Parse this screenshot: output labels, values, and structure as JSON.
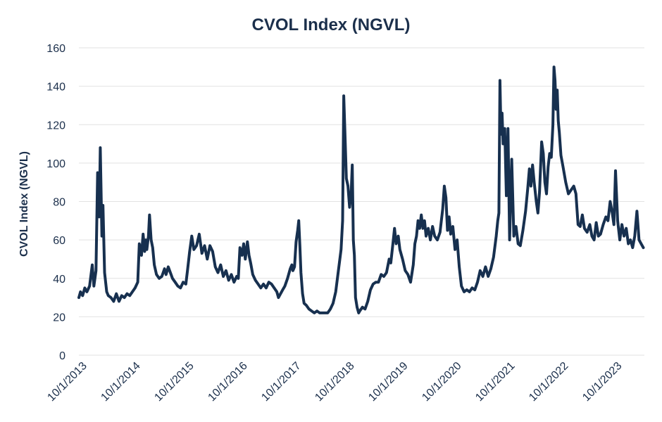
{
  "chart_data": {
    "type": "line",
    "title": "CVOL Index (NGVL)",
    "xlabel": "",
    "ylabel": "CVOL Index (NGVL)",
    "ylim": [
      0,
      160
    ],
    "yticks": [
      0,
      20,
      40,
      60,
      80,
      100,
      120,
      140,
      160
    ],
    "x_range": [
      2013.75,
      2024.32
    ],
    "x_tick_labels": [
      "10/1/2013",
      "10/1/2014",
      "10/1/2015",
      "10/1/2016",
      "10/1/2017",
      "10/1/2018",
      "10/1/2019",
      "10/1/2020",
      "10/1/2021",
      "10/1/2022",
      "10/1/2023"
    ],
    "x_tick_values": [
      2013.75,
      2014.75,
      2015.75,
      2016.75,
      2017.75,
      2018.75,
      2019.75,
      2020.75,
      2021.75,
      2022.75,
      2023.75
    ],
    "grid": true,
    "legend": "none",
    "line_color": "#17304f",
    "series": [
      {
        "name": "CVOL Index (NGVL)",
        "points": [
          [
            2013.75,
            30
          ],
          [
            2013.78,
            33
          ],
          [
            2013.82,
            31
          ],
          [
            2013.86,
            35
          ],
          [
            2013.9,
            33
          ],
          [
            2013.95,
            36
          ],
          [
            2014.0,
            47
          ],
          [
            2014.03,
            36
          ],
          [
            2014.07,
            44
          ],
          [
            2014.1,
            95
          ],
          [
            2014.13,
            72
          ],
          [
            2014.15,
            108
          ],
          [
            2014.18,
            62
          ],
          [
            2014.2,
            78
          ],
          [
            2014.23,
            43
          ],
          [
            2014.27,
            33
          ],
          [
            2014.3,
            31
          ],
          [
            2014.35,
            30
          ],
          [
            2014.4,
            28
          ],
          [
            2014.45,
            32
          ],
          [
            2014.5,
            28
          ],
          [
            2014.55,
            31
          ],
          [
            2014.6,
            30
          ],
          [
            2014.65,
            32
          ],
          [
            2014.7,
            31
          ],
          [
            2014.75,
            33
          ],
          [
            2014.8,
            35
          ],
          [
            2014.85,
            38
          ],
          [
            2014.88,
            58
          ],
          [
            2014.92,
            52
          ],
          [
            2014.95,
            63
          ],
          [
            2014.98,
            54
          ],
          [
            2015.0,
            60
          ],
          [
            2015.02,
            55
          ],
          [
            2015.05,
            62
          ],
          [
            2015.07,
            73
          ],
          [
            2015.1,
            60
          ],
          [
            2015.13,
            56
          ],
          [
            2015.16,
            47
          ],
          [
            2015.2,
            42
          ],
          [
            2015.25,
            40
          ],
          [
            2015.3,
            41
          ],
          [
            2015.35,
            45
          ],
          [
            2015.38,
            42
          ],
          [
            2015.42,
            46
          ],
          [
            2015.46,
            43
          ],
          [
            2015.5,
            40
          ],
          [
            2015.55,
            38
          ],
          [
            2015.6,
            36
          ],
          [
            2015.65,
            35
          ],
          [
            2015.7,
            38
          ],
          [
            2015.75,
            37
          ],
          [
            2015.78,
            44
          ],
          [
            2015.82,
            54
          ],
          [
            2015.86,
            62
          ],
          [
            2015.9,
            55
          ],
          [
            2015.95,
            57
          ],
          [
            2016.0,
            63
          ],
          [
            2016.05,
            53
          ],
          [
            2016.1,
            57
          ],
          [
            2016.15,
            50
          ],
          [
            2016.2,
            57
          ],
          [
            2016.25,
            54
          ],
          [
            2016.3,
            46
          ],
          [
            2016.35,
            43
          ],
          [
            2016.4,
            47
          ],
          [
            2016.45,
            41
          ],
          [
            2016.5,
            44
          ],
          [
            2016.55,
            39
          ],
          [
            2016.6,
            42
          ],
          [
            2016.65,
            38
          ],
          [
            2016.7,
            41
          ],
          [
            2016.73,
            40
          ],
          [
            2016.76,
            56
          ],
          [
            2016.8,
            52
          ],
          [
            2016.83,
            58
          ],
          [
            2016.86,
            50
          ],
          [
            2016.9,
            59
          ],
          [
            2016.93,
            52
          ],
          [
            2016.96,
            48
          ],
          [
            2017.0,
            42
          ],
          [
            2017.05,
            39
          ],
          [
            2017.1,
            37
          ],
          [
            2017.15,
            35
          ],
          [
            2017.2,
            37
          ],
          [
            2017.25,
            35
          ],
          [
            2017.3,
            38
          ],
          [
            2017.35,
            37
          ],
          [
            2017.4,
            35
          ],
          [
            2017.45,
            33
          ],
          [
            2017.48,
            30
          ],
          [
            2017.52,
            32
          ],
          [
            2017.56,
            34
          ],
          [
            2017.6,
            36
          ],
          [
            2017.65,
            40
          ],
          [
            2017.7,
            45
          ],
          [
            2017.73,
            47
          ],
          [
            2017.75,
            44
          ],
          [
            2017.78,
            46
          ],
          [
            2017.81,
            59
          ],
          [
            2017.84,
            65
          ],
          [
            2017.86,
            70
          ],
          [
            2017.88,
            57
          ],
          [
            2017.9,
            43
          ],
          [
            2017.93,
            32
          ],
          [
            2017.96,
            27
          ],
          [
            2018.0,
            26
          ],
          [
            2018.05,
            24
          ],
          [
            2018.1,
            23
          ],
          [
            2018.15,
            22
          ],
          [
            2018.2,
            23
          ],
          [
            2018.25,
            22
          ],
          [
            2018.3,
            22
          ],
          [
            2018.35,
            22
          ],
          [
            2018.4,
            22
          ],
          [
            2018.45,
            24
          ],
          [
            2018.5,
            27
          ],
          [
            2018.55,
            33
          ],
          [
            2018.6,
            44
          ],
          [
            2018.65,
            55
          ],
          [
            2018.68,
            70
          ],
          [
            2018.7,
            135
          ],
          [
            2018.72,
            118
          ],
          [
            2018.75,
            92
          ],
          [
            2018.78,
            88
          ],
          [
            2018.81,
            77
          ],
          [
            2018.84,
            85
          ],
          [
            2018.86,
            99
          ],
          [
            2018.88,
            60
          ],
          [
            2018.9,
            52
          ],
          [
            2018.92,
            30
          ],
          [
            2018.95,
            25
          ],
          [
            2018.98,
            22
          ],
          [
            2019.0,
            23
          ],
          [
            2019.05,
            25
          ],
          [
            2019.1,
            24
          ],
          [
            2019.15,
            28
          ],
          [
            2019.2,
            34
          ],
          [
            2019.25,
            37
          ],
          [
            2019.3,
            38
          ],
          [
            2019.35,
            38
          ],
          [
            2019.4,
            42
          ],
          [
            2019.45,
            41
          ],
          [
            2019.5,
            43
          ],
          [
            2019.55,
            50
          ],
          [
            2019.58,
            48
          ],
          [
            2019.62,
            58
          ],
          [
            2019.65,
            66
          ],
          [
            2019.68,
            58
          ],
          [
            2019.72,
            62
          ],
          [
            2019.75,
            55
          ],
          [
            2019.8,
            50
          ],
          [
            2019.85,
            44
          ],
          [
            2019.9,
            42
          ],
          [
            2019.95,
            38
          ],
          [
            2020.0,
            47
          ],
          [
            2020.03,
            58
          ],
          [
            2020.06,
            62
          ],
          [
            2020.09,
            70
          ],
          [
            2020.12,
            66
          ],
          [
            2020.15,
            73
          ],
          [
            2020.18,
            66
          ],
          [
            2020.21,
            70
          ],
          [
            2020.24,
            62
          ],
          [
            2020.28,
            66
          ],
          [
            2020.32,
            60
          ],
          [
            2020.36,
            67
          ],
          [
            2020.4,
            62
          ],
          [
            2020.45,
            60
          ],
          [
            2020.5,
            64
          ],
          [
            2020.55,
            76
          ],
          [
            2020.58,
            88
          ],
          [
            2020.61,
            82
          ],
          [
            2020.64,
            65
          ],
          [
            2020.67,
            72
          ],
          [
            2020.7,
            63
          ],
          [
            2020.74,
            67
          ],
          [
            2020.78,
            55
          ],
          [
            2020.82,
            60
          ],
          [
            2020.86,
            46
          ],
          [
            2020.9,
            36
          ],
          [
            2020.95,
            33
          ],
          [
            2021.0,
            34
          ],
          [
            2021.05,
            33
          ],
          [
            2021.1,
            35
          ],
          [
            2021.15,
            34
          ],
          [
            2021.2,
            38
          ],
          [
            2021.25,
            44
          ],
          [
            2021.3,
            41
          ],
          [
            2021.35,
            46
          ],
          [
            2021.4,
            41
          ],
          [
            2021.45,
            45
          ],
          [
            2021.5,
            51
          ],
          [
            2021.55,
            62
          ],
          [
            2021.58,
            70
          ],
          [
            2021.6,
            74
          ],
          [
            2021.62,
            143
          ],
          [
            2021.64,
            115
          ],
          [
            2021.66,
            126
          ],
          [
            2021.68,
            110
          ],
          [
            2021.71,
            118
          ],
          [
            2021.74,
            83
          ],
          [
            2021.77,
            118
          ],
          [
            2021.8,
            60
          ],
          [
            2021.84,
            102
          ],
          [
            2021.88,
            62
          ],
          [
            2021.92,
            67
          ],
          [
            2021.96,
            58
          ],
          [
            2022.0,
            57
          ],
          [
            2022.05,
            65
          ],
          [
            2022.1,
            75
          ],
          [
            2022.14,
            87
          ],
          [
            2022.17,
            97
          ],
          [
            2022.2,
            88
          ],
          [
            2022.23,
            99
          ],
          [
            2022.26,
            90
          ],
          [
            2022.3,
            80
          ],
          [
            2022.33,
            74
          ],
          [
            2022.36,
            85
          ],
          [
            2022.4,
            111
          ],
          [
            2022.43,
            105
          ],
          [
            2022.46,
            90
          ],
          [
            2022.49,
            84
          ],
          [
            2022.52,
            98
          ],
          [
            2022.55,
            105
          ],
          [
            2022.58,
            103
          ],
          [
            2022.61,
            120
          ],
          [
            2022.63,
            150
          ],
          [
            2022.65,
            143
          ],
          [
            2022.67,
            128
          ],
          [
            2022.69,
            138
          ],
          [
            2022.71,
            122
          ],
          [
            2022.73,
            116
          ],
          [
            2022.76,
            104
          ],
          [
            2022.8,
            98
          ],
          [
            2022.85,
            90
          ],
          [
            2022.9,
            84
          ],
          [
            2022.95,
            86
          ],
          [
            2023.0,
            88
          ],
          [
            2023.04,
            84
          ],
          [
            2023.08,
            68
          ],
          [
            2023.12,
            67
          ],
          [
            2023.16,
            73
          ],
          [
            2023.2,
            66
          ],
          [
            2023.25,
            64
          ],
          [
            2023.3,
            68
          ],
          [
            2023.34,
            62
          ],
          [
            2023.38,
            60
          ],
          [
            2023.42,
            69
          ],
          [
            2023.46,
            62
          ],
          [
            2023.5,
            63
          ],
          [
            2023.55,
            68
          ],
          [
            2023.6,
            72
          ],
          [
            2023.64,
            70
          ],
          [
            2023.68,
            80
          ],
          [
            2023.72,
            74
          ],
          [
            2023.75,
            68
          ],
          [
            2023.78,
            96
          ],
          [
            2023.82,
            70
          ],
          [
            2023.86,
            60
          ],
          [
            2023.9,
            68
          ],
          [
            2023.94,
            62
          ],
          [
            2023.98,
            66
          ],
          [
            2024.02,
            58
          ],
          [
            2024.06,
            60
          ],
          [
            2024.1,
            56
          ],
          [
            2024.14,
            62
          ],
          [
            2024.18,
            75
          ],
          [
            2024.22,
            60
          ],
          [
            2024.26,
            58
          ],
          [
            2024.3,
            56
          ]
        ]
      }
    ]
  }
}
